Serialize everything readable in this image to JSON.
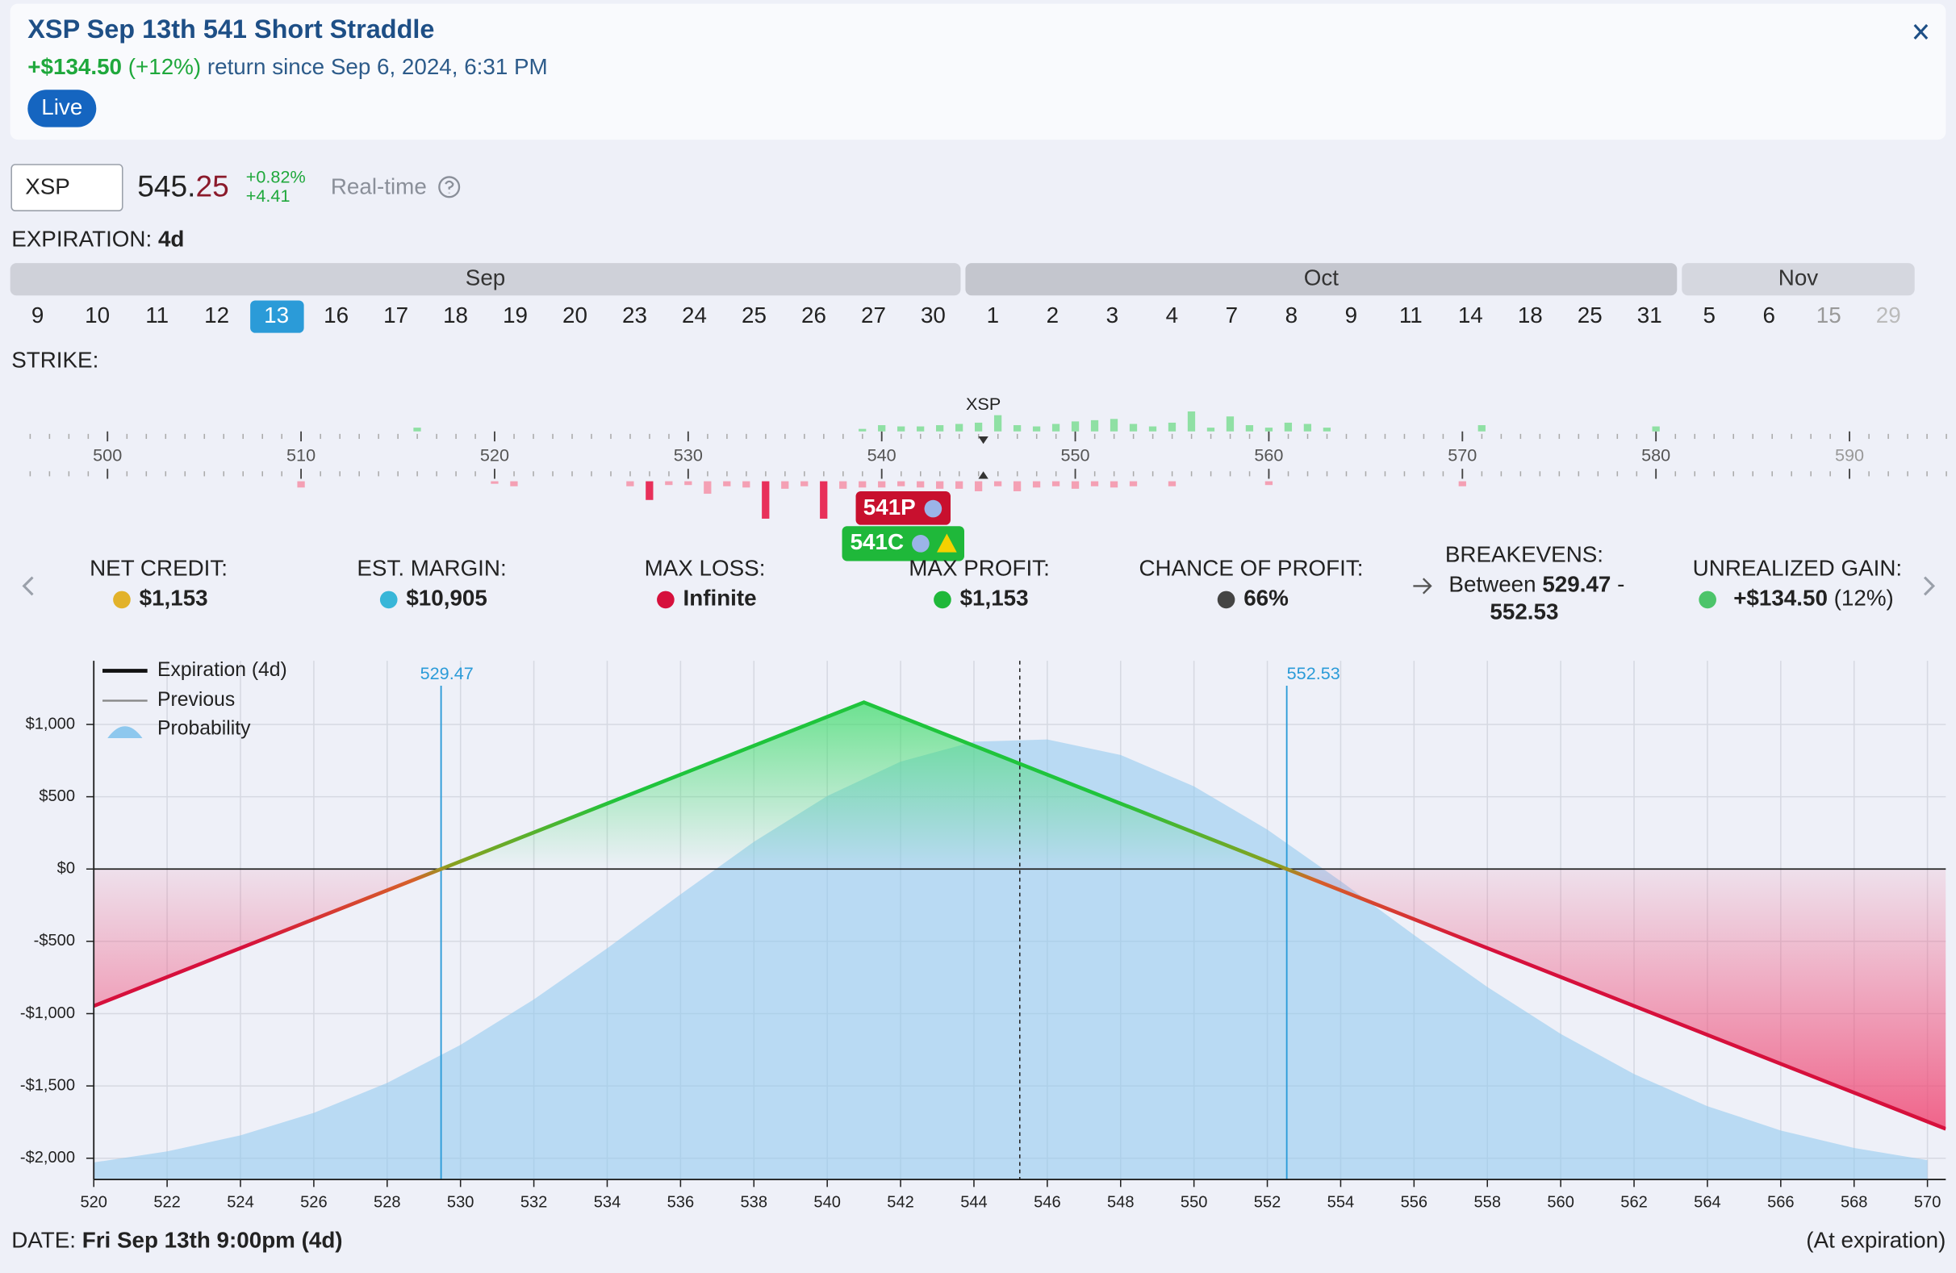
{
  "header": {
    "title": "XSP Sep 13th 541 Short Straddle",
    "return": "+$134.50",
    "return_pct": "(+12%)",
    "return_text": "return since Sep 6, 2024, 6:31 PM",
    "badge": "Live"
  },
  "quote": {
    "symbol": "XSP",
    "price_main": "545.",
    "price_cents": "25",
    "change_pct": "+0.82%",
    "change": "+4.41",
    "realtime": "Real-time"
  },
  "expiration": {
    "label": "EXPIRATION:",
    "value": "4d",
    "selected": "13",
    "months": [
      {
        "name": "Sep",
        "dates": [
          "9",
          "10",
          "11",
          "12",
          "13",
          "16",
          "17",
          "18",
          "19",
          "20",
          "23",
          "24",
          "25",
          "26",
          "27",
          "30"
        ]
      },
      {
        "name": "Oct",
        "dates": [
          "1",
          "2",
          "3",
          "4",
          "7",
          "8",
          "9",
          "11",
          "14",
          "18",
          "25",
          "31"
        ]
      },
      {
        "name": "Nov",
        "dates": [
          "5",
          "6",
          "15",
          "29"
        ]
      }
    ]
  },
  "strike": {
    "label": "STRIKE:",
    "ticks": [
      500,
      510,
      520,
      530,
      540,
      550,
      560,
      570,
      580,
      590
    ],
    "symbol": "XSP",
    "spot": 545.25,
    "legs": [
      "541P",
      "541C"
    ],
    "call_volume": {
      "strikes": [
        516,
        539,
        540,
        541,
        542,
        543,
        544,
        545,
        546,
        547,
        548,
        549,
        550,
        551,
        552,
        553,
        554,
        555,
        556,
        557,
        558,
        559,
        560,
        561,
        562,
        563,
        571,
        580
      ],
      "values": [
        3,
        2,
        5,
        4,
        4,
        5,
        6,
        7,
        13,
        5,
        4,
        6,
        8,
        9,
        10,
        6,
        4,
        7,
        16,
        3,
        12,
        5,
        3,
        7,
        6,
        3,
        5,
        4
      ]
    },
    "put_volume": {
      "strikes": [
        510,
        520,
        521,
        527,
        528,
        529,
        530,
        531,
        532,
        533,
        534,
        535,
        536,
        537,
        538,
        539,
        540,
        541,
        542,
        543,
        544,
        545,
        546,
        547,
        548,
        549,
        550,
        551,
        552,
        553,
        555,
        560,
        570
      ],
      "values": [
        5,
        2,
        4,
        4,
        15,
        3,
        3,
        10,
        4,
        5,
        30,
        6,
        4,
        30,
        6,
        5,
        5,
        4,
        5,
        6,
        6,
        8,
        4,
        8,
        5,
        4,
        6,
        4,
        5,
        4,
        4,
        3,
        4
      ]
    }
  },
  "stats": [
    {
      "label": "NET CREDIT:",
      "value": "$1,153"
    },
    {
      "label": "EST. MARGIN:",
      "value": "$10,905"
    },
    {
      "label": "MAX LOSS:",
      "value": "Infinite"
    },
    {
      "label": "MAX PROFIT:",
      "value": "$1,153"
    },
    {
      "label": "CHANCE OF PROFIT:",
      "value": "66%"
    }
  ],
  "breakevens": {
    "label": "BREAKEVENS:",
    "prefix": "Between",
    "low": "529.47",
    "sep": "-",
    "high": "552.53"
  },
  "unrealized": {
    "label": "UNREALIZED GAIN:",
    "value": "+$134.50",
    "note": "(12%)"
  },
  "chart_data": {
    "type": "line",
    "xlim": [
      520,
      570.5
    ],
    "ylim": [
      -2147,
      1440
    ],
    "xticks": [
      520,
      522,
      524,
      526,
      528,
      530,
      532,
      534,
      536,
      538,
      540,
      542,
      544,
      546,
      548,
      550,
      552,
      554,
      556,
      558,
      560,
      562,
      564,
      566,
      568,
      570
    ],
    "yticks": [
      {
        "value": -2000,
        "label": "-$2,000"
      },
      {
        "value": -1500,
        "label": "-$1,500"
      },
      {
        "value": -1000,
        "label": "-$1,000"
      },
      {
        "value": -500,
        "label": "-$500"
      },
      {
        "value": 0,
        "label": "$0"
      },
      {
        "value": 500,
        "label": "$500"
      },
      {
        "value": 1000,
        "label": "$1,000"
      }
    ],
    "grid": true,
    "spot": 545.25,
    "breakevens": [
      529.47,
      552.53
    ],
    "series": [
      {
        "name": "Expiration (4d)",
        "color": "#111111",
        "x": [
          520,
          529.47,
          541,
          552.53,
          570.5
        ],
        "values": [
          -947,
          0,
          1153,
          0,
          -1797
        ]
      },
      {
        "name": "Previous",
        "color": "#888888"
      },
      {
        "name": "Probability",
        "color": "#8ec8ee",
        "x": [
          520,
          522,
          524,
          526,
          528,
          530,
          532,
          534,
          536,
          538,
          540,
          542,
          544,
          546,
          548,
          550,
          552,
          554,
          556,
          558,
          560,
          562,
          564,
          566,
          568,
          570
        ],
        "values": [
          -2029,
          -1953,
          -1842,
          -1686,
          -1479,
          -1216,
          -902,
          -548,
          -175,
          188,
          505,
          743,
          881,
          896,
          789,
          572,
          273,
          -84,
          -456,
          -816,
          -1140,
          -1418,
          -1640,
          -1808,
          -1929,
          -2013
        ]
      }
    ]
  },
  "footer": {
    "label": "DATE:",
    "value": "Fri Sep 13th 9:00pm (4d)",
    "note": "(At expiration)"
  }
}
